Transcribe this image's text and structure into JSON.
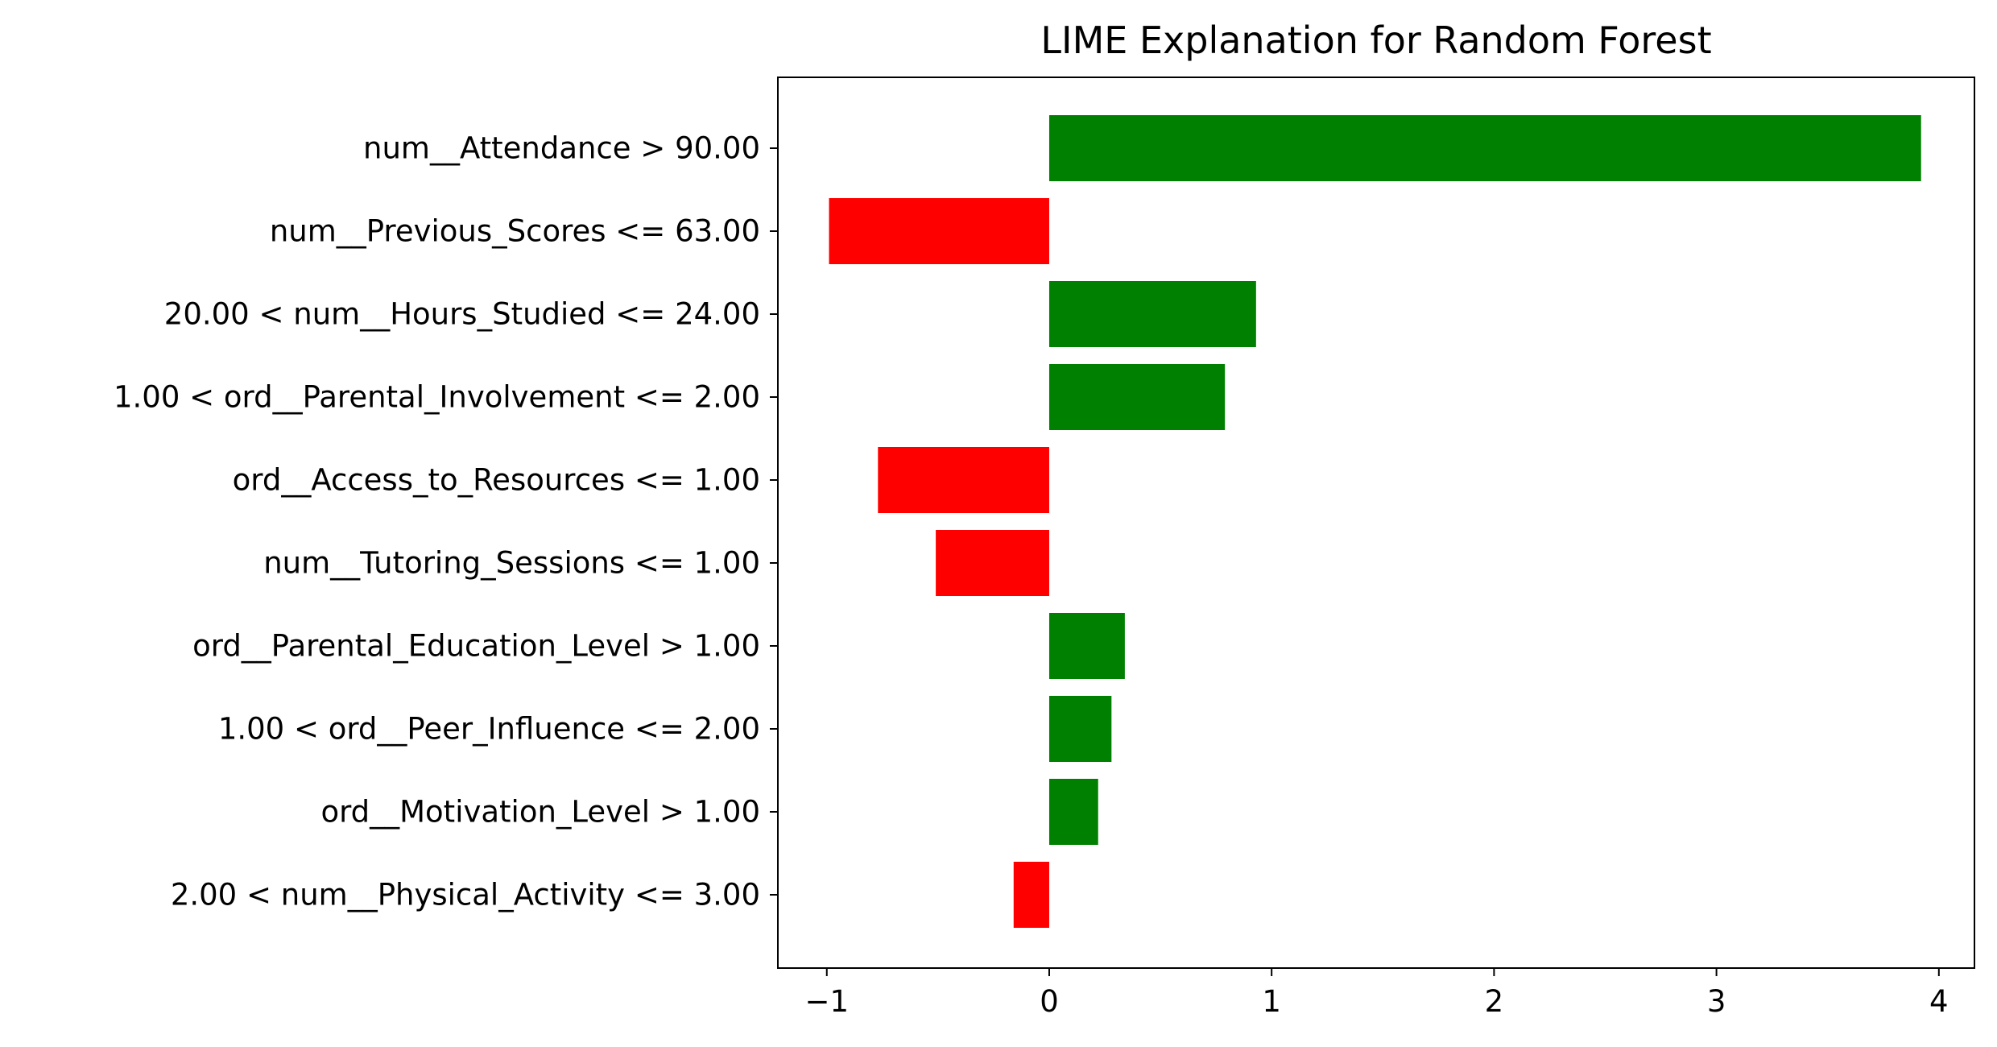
{
  "chart_data": {
    "type": "bar",
    "orientation": "horizontal",
    "title": "LIME Explanation for Random Forest",
    "xlabel": "",
    "ylabel": "",
    "xlim": [
      -1.22,
      4.16
    ],
    "xticks": [
      -1,
      0,
      1,
      2,
      3,
      4
    ],
    "xtick_labels": [
      "−1",
      "0",
      "1",
      "2",
      "3",
      "4"
    ],
    "grid": false,
    "legend": "none",
    "positive_color": "#008000",
    "negative_color": "#ff0000",
    "categories": [
      "num__Attendance > 90.00",
      "num__Previous_Scores <= 63.00",
      "20.00 < num__Hours_Studied <= 24.00",
      "1.00 < ord__Parental_Involvement <= 2.00",
      "ord__Access_to_Resources <= 1.00",
      "num__Tutoring_Sessions <= 1.00",
      "ord__Parental_Education_Level > 1.00",
      "1.00 < ord__Peer_Influence <= 2.00",
      "ord__Motivation_Level > 1.00",
      "2.00 < num__Physical_Activity <= 3.00"
    ],
    "values": [
      3.92,
      -0.99,
      0.93,
      0.79,
      -0.77,
      -0.51,
      0.34,
      0.28,
      0.22,
      -0.16
    ]
  }
}
